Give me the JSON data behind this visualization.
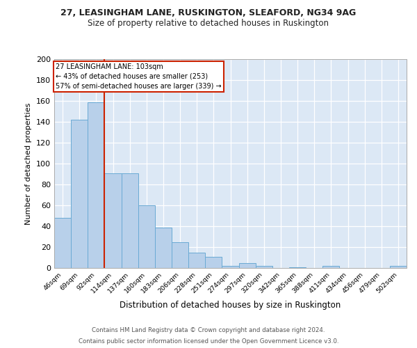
{
  "title1": "27, LEASINGHAM LANE, RUSKINGTON, SLEAFORD, NG34 9AG",
  "title2": "Size of property relative to detached houses in Ruskington",
  "xlabel": "Distribution of detached houses by size in Ruskington",
  "ylabel": "Number of detached properties",
  "footer1": "Contains HM Land Registry data © Crown copyright and database right 2024.",
  "footer2": "Contains public sector information licensed under the Open Government Licence v3.0.",
  "bar_labels": [
    "46sqm",
    "69sqm",
    "92sqm",
    "114sqm",
    "137sqm",
    "160sqm",
    "183sqm",
    "206sqm",
    "228sqm",
    "251sqm",
    "274sqm",
    "297sqm",
    "320sqm",
    "342sqm",
    "365sqm",
    "388sqm",
    "411sqm",
    "434sqm",
    "456sqm",
    "479sqm",
    "502sqm"
  ],
  "bar_values": [
    48,
    142,
    159,
    91,
    91,
    60,
    39,
    25,
    15,
    11,
    2,
    5,
    2,
    0,
    1,
    0,
    2,
    0,
    0,
    0,
    2
  ],
  "bar_color": "#b8d0ea",
  "bar_edge_color": "#6aaad4",
  "property_line_label": "27 LEASINGHAM LANE: 103sqm",
  "annotation_line1": "← 43% of detached houses are smaller (253)",
  "annotation_line2": "57% of semi-detached houses are larger (339) →",
  "red_line_color": "#cc2200",
  "ylim": [
    0,
    200
  ],
  "yticks": [
    0,
    20,
    40,
    60,
    80,
    100,
    120,
    140,
    160,
    180,
    200
  ],
  "plot_bg_color": "#dce8f5",
  "grid_color": "#ffffff",
  "title1_fontsize": 9.0,
  "title2_fontsize": 8.5
}
